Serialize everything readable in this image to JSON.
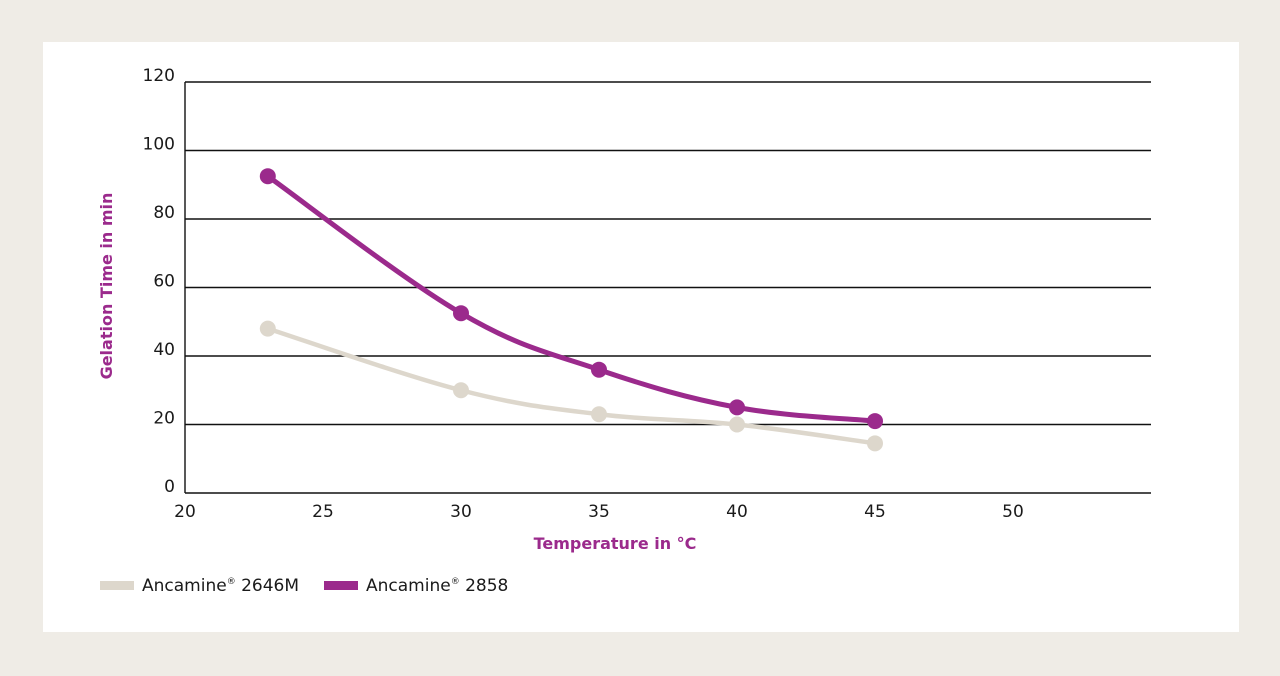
{
  "chart_data": {
    "type": "line",
    "title": "",
    "xlabel": "Temperature in °C",
    "ylabel": "Gelation Time in min",
    "xlim": [
      20,
      55
    ],
    "ylim": [
      0,
      120
    ],
    "x_ticks": [
      20,
      25,
      30,
      35,
      40,
      45,
      50
    ],
    "y_ticks": [
      0,
      20,
      40,
      60,
      80,
      100,
      120
    ],
    "grid": "horizontal",
    "legend_position": "bottom-left",
    "series": [
      {
        "name": "Ancamine® 2646M",
        "color": "#ddd7cc",
        "x": [
          23,
          30,
          35,
          40,
          45
        ],
        "y": [
          48,
          30,
          23,
          20,
          14.5
        ]
      },
      {
        "name": "Ancamine® 2858",
        "color": "#9b2a8c",
        "x": [
          23,
          30,
          35,
          40,
          45
        ],
        "y": [
          92.5,
          52.5,
          36,
          25,
          21
        ]
      }
    ]
  },
  "legend": {
    "items": [
      {
        "base": "Ancamine",
        "mark": "®",
        "code": "2646M",
        "color": "#ddd7cc"
      },
      {
        "base": "Ancamine",
        "mark": "®",
        "code": "2858",
        "color": "#9b2a8c"
      }
    ]
  }
}
